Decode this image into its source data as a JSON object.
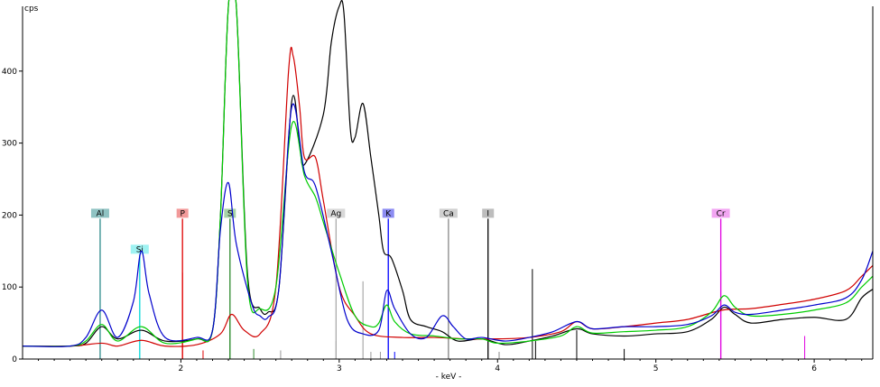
{
  "chart_data": {
    "type": "line",
    "ylabel": "cps",
    "xlabel": "- keV -",
    "xlim": [
      1.0,
      6.37
    ],
    "ylim": [
      0,
      490
    ],
    "x_ticks": [
      2,
      3,
      4,
      5,
      6
    ],
    "y_ticks": [
      0,
      100,
      200,
      300,
      400
    ],
    "grid": false,
    "series": [
      {
        "color": "#000000",
        "points": [
          [
            1.0,
            18
          ],
          [
            1.3,
            18
          ],
          [
            1.4,
            22
          ],
          [
            1.5,
            45
          ],
          [
            1.6,
            28
          ],
          [
            1.75,
            40
          ],
          [
            1.9,
            25
          ],
          [
            2.1,
            28
          ],
          [
            2.2,
            40
          ],
          [
            2.25,
            200
          ],
          [
            2.3,
            490
          ],
          [
            2.35,
            490
          ],
          [
            2.42,
            120
          ],
          [
            2.5,
            70
          ],
          [
            2.55,
            65
          ],
          [
            2.62,
            100
          ],
          [
            2.7,
            358
          ],
          [
            2.75,
            300
          ],
          [
            2.78,
            270
          ],
          [
            2.9,
            340
          ],
          [
            2.95,
            440
          ],
          [
            3.0,
            490
          ],
          [
            3.03,
            480
          ],
          [
            3.07,
            320
          ],
          [
            3.1,
            308
          ],
          [
            3.15,
            355
          ],
          [
            3.2,
            280
          ],
          [
            3.25,
            200
          ],
          [
            3.28,
            150
          ],
          [
            3.33,
            140
          ],
          [
            3.4,
            95
          ],
          [
            3.45,
            55
          ],
          [
            3.55,
            45
          ],
          [
            3.65,
            38
          ],
          [
            3.75,
            25
          ],
          [
            3.9,
            28
          ],
          [
            4.05,
            20
          ],
          [
            4.2,
            25
          ],
          [
            4.35,
            32
          ],
          [
            4.5,
            42
          ],
          [
            4.6,
            35
          ],
          [
            4.8,
            32
          ],
          [
            5.0,
            35
          ],
          [
            5.2,
            38
          ],
          [
            5.35,
            55
          ],
          [
            5.43,
            72
          ],
          [
            5.5,
            62
          ],
          [
            5.6,
            50
          ],
          [
            5.8,
            55
          ],
          [
            6.0,
            58
          ],
          [
            6.2,
            55
          ],
          [
            6.3,
            85
          ],
          [
            6.37,
            97
          ]
        ]
      },
      {
        "color": "#d00000",
        "points": [
          [
            1.0,
            18
          ],
          [
            1.3,
            18
          ],
          [
            1.5,
            22
          ],
          [
            1.6,
            18
          ],
          [
            1.75,
            26
          ],
          [
            1.9,
            18
          ],
          [
            2.1,
            20
          ],
          [
            2.25,
            35
          ],
          [
            2.32,
            62
          ],
          [
            2.4,
            40
          ],
          [
            2.5,
            35
          ],
          [
            2.6,
            100
          ],
          [
            2.68,
            400
          ],
          [
            2.71,
            420
          ],
          [
            2.75,
            350
          ],
          [
            2.78,
            280
          ],
          [
            2.85,
            280
          ],
          [
            2.9,
            220
          ],
          [
            3.0,
            100
          ],
          [
            3.1,
            60
          ],
          [
            3.2,
            35
          ],
          [
            3.4,
            30
          ],
          [
            3.6,
            30
          ],
          [
            3.8,
            28
          ],
          [
            4.0,
            28
          ],
          [
            4.2,
            30
          ],
          [
            4.4,
            38
          ],
          [
            4.5,
            52
          ],
          [
            4.6,
            42
          ],
          [
            4.8,
            45
          ],
          [
            5.0,
            50
          ],
          [
            5.2,
            55
          ],
          [
            5.42,
            68
          ],
          [
            5.6,
            70
          ],
          [
            5.8,
            76
          ],
          [
            6.0,
            83
          ],
          [
            6.2,
            95
          ],
          [
            6.3,
            115
          ],
          [
            6.37,
            130
          ]
        ]
      },
      {
        "color": "#00cc00",
        "points": [
          [
            1.0,
            18
          ],
          [
            1.3,
            18
          ],
          [
            1.4,
            25
          ],
          [
            1.5,
            48
          ],
          [
            1.6,
            25
          ],
          [
            1.75,
            45
          ],
          [
            1.9,
            22
          ],
          [
            2.1,
            28
          ],
          [
            2.2,
            40
          ],
          [
            2.25,
            200
          ],
          [
            2.3,
            490
          ],
          [
            2.35,
            490
          ],
          [
            2.42,
            110
          ],
          [
            2.5,
            70
          ],
          [
            2.6,
            100
          ],
          [
            2.7,
            325
          ],
          [
            2.78,
            255
          ],
          [
            2.85,
            225
          ],
          [
            2.9,
            190
          ],
          [
            3.0,
            120
          ],
          [
            3.1,
            60
          ],
          [
            3.2,
            45
          ],
          [
            3.25,
            50
          ],
          [
            3.3,
            75
          ],
          [
            3.35,
            52
          ],
          [
            3.45,
            35
          ],
          [
            3.6,
            32
          ],
          [
            3.75,
            28
          ],
          [
            3.9,
            28
          ],
          [
            4.0,
            22
          ],
          [
            4.2,
            25
          ],
          [
            4.4,
            32
          ],
          [
            4.5,
            45
          ],
          [
            4.6,
            36
          ],
          [
            4.8,
            38
          ],
          [
            5.0,
            40
          ],
          [
            5.2,
            45
          ],
          [
            5.35,
            65
          ],
          [
            5.43,
            88
          ],
          [
            5.5,
            72
          ],
          [
            5.6,
            60
          ],
          [
            5.8,
            62
          ],
          [
            6.0,
            68
          ],
          [
            6.2,
            78
          ],
          [
            6.3,
            100
          ],
          [
            6.37,
            115
          ]
        ]
      },
      {
        "color": "#0000cc",
        "points": [
          [
            1.0,
            18
          ],
          [
            1.3,
            18
          ],
          [
            1.4,
            30
          ],
          [
            1.5,
            68
          ],
          [
            1.6,
            30
          ],
          [
            1.7,
            80
          ],
          [
            1.75,
            150
          ],
          [
            1.8,
            90
          ],
          [
            1.9,
            30
          ],
          [
            2.1,
            30
          ],
          [
            2.2,
            40
          ],
          [
            2.25,
            180
          ],
          [
            2.3,
            245
          ],
          [
            2.35,
            160
          ],
          [
            2.45,
            75
          ],
          [
            2.5,
            60
          ],
          [
            2.55,
            58
          ],
          [
            2.62,
            100
          ],
          [
            2.7,
            350
          ],
          [
            2.78,
            260
          ],
          [
            2.85,
            240
          ],
          [
            2.95,
            150
          ],
          [
            3.05,
            55
          ],
          [
            3.15,
            35
          ],
          [
            3.25,
            40
          ],
          [
            3.3,
            95
          ],
          [
            3.35,
            70
          ],
          [
            3.45,
            35
          ],
          [
            3.55,
            30
          ],
          [
            3.65,
            60
          ],
          [
            3.72,
            45
          ],
          [
            3.8,
            28
          ],
          [
            3.9,
            30
          ],
          [
            4.05,
            25
          ],
          [
            4.2,
            30
          ],
          [
            4.35,
            38
          ],
          [
            4.5,
            52
          ],
          [
            4.6,
            42
          ],
          [
            4.8,
            45
          ],
          [
            5.0,
            45
          ],
          [
            5.2,
            48
          ],
          [
            5.35,
            60
          ],
          [
            5.43,
            75
          ],
          [
            5.5,
            65
          ],
          [
            5.6,
            62
          ],
          [
            5.8,
            68
          ],
          [
            6.0,
            75
          ],
          [
            6.2,
            85
          ],
          [
            6.3,
            110
          ],
          [
            6.37,
            150
          ]
        ]
      }
    ],
    "element_markers": [
      {
        "label": "Al",
        "x": 1.49,
        "color": "#2e8b8b",
        "label_bg": "#8fc3c3",
        "height": 195
      },
      {
        "label": "Si",
        "x": 1.74,
        "color": "#00d8d8",
        "label_bg": "#9ef2f2",
        "height": 145
      },
      {
        "label": "P",
        "x": 2.01,
        "color": "#e00000",
        "label_bg": "#f29a9a",
        "height": 195
      },
      {
        "label": "S",
        "x": 2.31,
        "color": "#2e8b2e",
        "label_bg": "#a6d3a6",
        "height": 195
      },
      {
        "label": "Ag",
        "x": 2.98,
        "color": "#aaaaaa",
        "label_bg": "#d8d8d8",
        "height": 195
      },
      {
        "label": "K",
        "x": 3.31,
        "color": "#0000ff",
        "label_bg": "#8c8cf2",
        "height": 195
      },
      {
        "label": "Ca",
        "x": 3.69,
        "color": "#888888",
        "label_bg": "#cfcfcf",
        "height": 195
      },
      {
        "label": "I",
        "x": 3.94,
        "color": "#000000",
        "label_bg": "#bdbdbd",
        "height": 195
      },
      {
        "label": "Cr",
        "x": 5.41,
        "color": "#e000e0",
        "label_bg": "#f2a6f2",
        "height": 195
      }
    ],
    "minor_lines": [
      {
        "x": 2.01,
        "h": 120,
        "color": "#e00000"
      },
      {
        "x": 2.14,
        "h": 12,
        "color": "#e00000"
      },
      {
        "x": 2.31,
        "h": 60,
        "color": "#2e8b2e"
      },
      {
        "x": 2.46,
        "h": 14,
        "color": "#2e8b2e"
      },
      {
        "x": 2.63,
        "h": 12,
        "color": "#999999"
      },
      {
        "x": 2.98,
        "h": 25,
        "color": "#aaaaaa"
      },
      {
        "x": 3.15,
        "h": 108,
        "color": "#999999"
      },
      {
        "x": 3.2,
        "h": 10,
        "color": "#999999"
      },
      {
        "x": 3.26,
        "h": 10,
        "color": "#999999"
      },
      {
        "x": 3.35,
        "h": 10,
        "color": "#0000ff"
      },
      {
        "x": 3.69,
        "h": 122,
        "color": "#888888"
      },
      {
        "x": 4.01,
        "h": 10,
        "color": "#888888"
      },
      {
        "x": 4.22,
        "h": 125,
        "color": "#000000"
      },
      {
        "x": 4.24,
        "h": 25,
        "color": "#000000"
      },
      {
        "x": 4.5,
        "h": 40,
        "color": "#000000"
      },
      {
        "x": 4.8,
        "h": 14,
        "color": "#000000"
      },
      {
        "x": 5.41,
        "h": 122,
        "color": "#e000e0"
      },
      {
        "x": 5.94,
        "h": 32,
        "color": "#e000e0"
      }
    ]
  }
}
